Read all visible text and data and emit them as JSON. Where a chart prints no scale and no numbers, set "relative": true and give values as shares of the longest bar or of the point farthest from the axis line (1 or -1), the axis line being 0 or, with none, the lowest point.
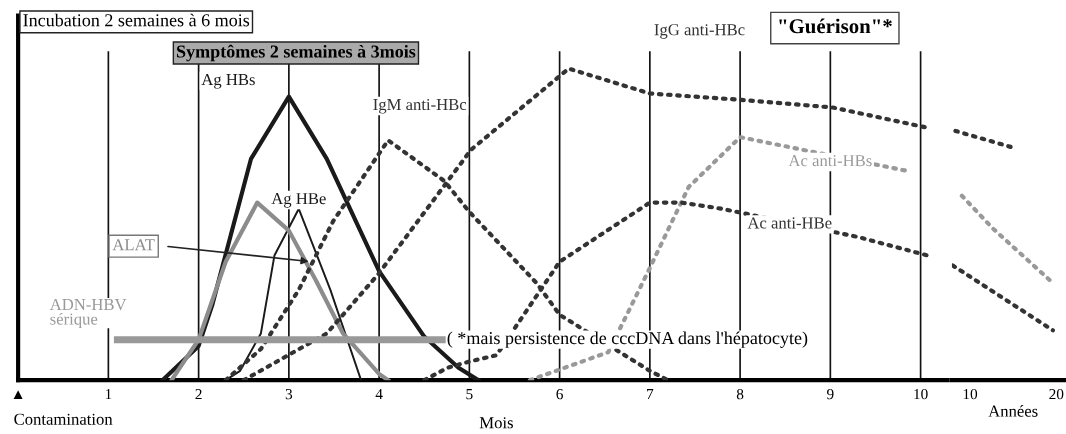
{
  "chart_data": [
    {
      "type": "line",
      "relative": true,
      "xlabel": "Mois",
      "xlim": [
        0,
        10.3
      ],
      "xticks": [
        {
          "value": 0,
          "label": "▲"
        },
        1,
        2,
        3,
        4,
        5,
        6,
        7,
        8,
        9,
        10
      ],
      "tick_labels": "x",
      "grid": "x",
      "marker": "none",
      "series": [
        {
          "name": "Ag HBs",
          "color": "#1a1a1a",
          "line_style": "solid",
          "x": [
            1.6,
            2.0,
            2.15,
            2.58,
            3.0,
            3.42,
            4.0,
            4.5,
            4.88,
            5.1
          ],
          "values": [
            0,
            0.11,
            0.24,
            0.71,
            0.91,
            0.71,
            0.35,
            0.14,
            0.04,
            0
          ]
        },
        {
          "name": "Ag HBe",
          "color": "#1a1a1a",
          "line_style": "solid",
          "x": [
            2.3,
            2.46,
            2.69,
            2.84,
            3.11,
            3.46,
            3.8
          ],
          "values": [
            0,
            0.03,
            0.15,
            0.4,
            0.55,
            0.29,
            0
          ]
        },
        {
          "name": "ALAT",
          "color": "#8c8c8c",
          "line_style": "solid",
          "x": [
            1.7,
            2.0,
            2.3,
            2.65,
            3.0,
            3.3,
            3.6,
            4.0,
            4.1
          ],
          "values": [
            0,
            0.13,
            0.38,
            0.57,
            0.48,
            0.32,
            0.15,
            0.02,
            0
          ]
        },
        {
          "name": "IgM anti-HBc",
          "color": "#333333",
          "line_style": "dotted",
          "x": [
            2.3,
            2.69,
            3.11,
            3.49,
            4.1,
            4.72,
            5.0,
            5.75,
            6.0,
            7.0,
            7.2
          ],
          "values": [
            0,
            0.1,
            0.29,
            0.51,
            0.77,
            0.64,
            0.54,
            0.31,
            0.21,
            0.03,
            0
          ]
        },
        {
          "name": "IgG anti-HBc",
          "color": "#333333",
          "line_style": "dotted",
          "x": [
            2.5,
            3.42,
            3.99,
            5.02,
            6.1,
            7.0,
            8.0,
            9.03,
            10.08
          ],
          "values": [
            0,
            0.15,
            0.34,
            0.74,
            1,
            0.92,
            0.9,
            0.875,
            0.81
          ]
        },
        {
          "name": "Ac anti-HBs",
          "color": "#999999",
          "line_style": "dotted",
          "x": [
            5.67,
            6.54,
            7.0,
            7.23,
            7.43,
            8.0,
            9.88
          ],
          "values": [
            0,
            0.09,
            0.36,
            0.5,
            0.62,
            0.78,
            0.67
          ]
        },
        {
          "name": "Ac anti-HBe",
          "color": "#333333",
          "line_style": "dotted",
          "x": [
            4.5,
            4.76,
            5.0,
            5.3,
            6.0,
            7.0,
            7.35,
            7.8,
            9.3,
            10.08
          ],
          "values": [
            0,
            0.04,
            0.06,
            0.08,
            0.38,
            0.57,
            0.57,
            0.55,
            0.46,
            0.4
          ]
        },
        {
          "name": "ADN-HBV\nsérique",
          "color": "#999999",
          "line_style": "solid",
          "x": [
            1.1,
            4.7
          ],
          "values": [
            0.13,
            0.13
          ]
        }
      ],
      "annotations": [
        "Incubation 2 semaines à 6 mois",
        "Symptômes 2 semaines à 3mois",
        "\"Guérison\"*",
        "( *mais persistence de cccDNA dans l'hépatocyte)",
        "Contamination"
      ]
    },
    {
      "type": "line",
      "relative": true,
      "xlim": [
        7.9,
        21.0
      ],
      "xticks": [
        10,
        20
      ],
      "tick_labels": "x",
      "marker": "none",
      "series": [
        {
          "color": "#333333",
          "line_style": "dotted",
          "x": [
            8.3,
            15.3
          ],
          "values": [
            1,
            0.93
          ]
        },
        {
          "color": "#999999",
          "line_style": "dotted",
          "x": [
            9.05,
            12.6,
            19.6
          ],
          "values": [
            0.74,
            0.61,
            0.39
          ]
        },
        {
          "color": "#333333",
          "line_style": "dotted",
          "x": [
            8.0,
            19.6
          ],
          "values": [
            0.46,
            0.2
          ]
        }
      ],
      "annotations": [
        "Années"
      ]
    }
  ]
}
